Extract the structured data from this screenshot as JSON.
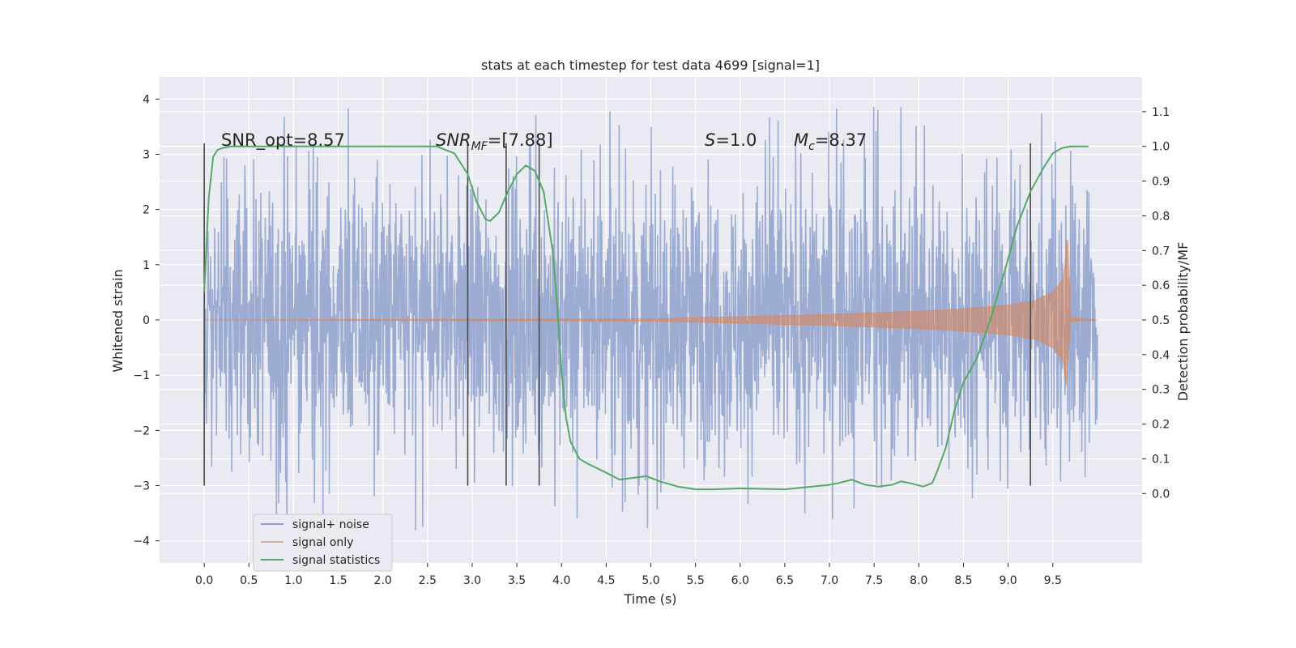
{
  "chart_data": {
    "type": "line",
    "title": "stats at each timestep for test data 4699 [signal=1]",
    "xlabel": "Time (s)",
    "ylabel": "Whitened strain",
    "ylabel_right": "Detection probability/MF",
    "xlim": [
      -0.5,
      10.5
    ],
    "ylim": [
      -4.4,
      4.4
    ],
    "ylim_right": [
      -0.2,
      1.2
    ],
    "x_ticks": [
      "0.0",
      "0.5",
      "1.0",
      "1.5",
      "2.0",
      "2.5",
      "3.0",
      "3.5",
      "4.0",
      "4.5",
      "5.0",
      "5.5",
      "6.0",
      "6.5",
      "7.0",
      "7.5",
      "8.0",
      "8.5",
      "9.0",
      "9.5"
    ],
    "y_ticks": [
      "−4",
      "−3",
      "−2",
      "−1",
      "0",
      "1",
      "2",
      "3",
      "4"
    ],
    "y_ticks_right": [
      "0.0",
      "0.1",
      "0.2",
      "0.3",
      "0.4",
      "0.5",
      "0.6",
      "0.7",
      "0.8",
      "0.9",
      "1.0",
      "1.1"
    ],
    "grid": true,
    "legend_position": "lower-left",
    "annotations": {
      "snr_opt": "SNR_opt=8.57",
      "snr_mf_base": "SNR",
      "snr_mf_sub": "MF",
      "snr_mf_value": "=[7.88]",
      "s_label": "S",
      "s_value": "=1.0",
      "mc_base": "M",
      "mc_sub": "c",
      "mc_value": "=8.37"
    },
    "vertical_markers": [
      {
        "x": 0.0,
        "y": [
          -3.0,
          3.2
        ]
      },
      {
        "x": 2.95,
        "y": [
          -3.0,
          3.2
        ]
      },
      {
        "x": 3.38,
        "y": [
          -3.0,
          3.2
        ]
      },
      {
        "x": 3.75,
        "y": [
          -3.0,
          3.2
        ]
      },
      {
        "x": 9.25,
        "y": [
          -3.0,
          3.2
        ]
      }
    ],
    "series": [
      {
        "name": "signal+ noise",
        "color": "#8da0cb",
        "axis": "left",
        "x_range": [
          0.0,
          10.0
        ],
        "amplitude_envelope": [
          [
            0.0,
            2.0
          ],
          [
            10.0,
            2.0
          ]
        ],
        "peak_range": [
          -3.9,
          4.0
        ]
      },
      {
        "name": "signal only",
        "color": "#dd8452",
        "axis": "left",
        "envelope": [
          {
            "x": 0.0,
            "a": 0.0
          },
          {
            "x": 5.0,
            "a": 0.02
          },
          {
            "x": 6.0,
            "a": 0.06
          },
          {
            "x": 7.0,
            "a": 0.1
          },
          {
            "x": 8.0,
            "a": 0.16
          },
          {
            "x": 8.5,
            "a": 0.2
          },
          {
            "x": 9.0,
            "a": 0.27
          },
          {
            "x": 9.3,
            "a": 0.35
          },
          {
            "x": 9.5,
            "a": 0.5
          },
          {
            "x": 9.62,
            "a": 0.75
          },
          {
            "x": 9.67,
            "a": 1.5
          },
          {
            "x": 9.7,
            "a": 0.05
          },
          {
            "x": 10.0,
            "a": 0.0
          }
        ]
      },
      {
        "name": "signal statistics",
        "color": "#55a868",
        "axis": "right",
        "points": [
          [
            0.0,
            0.58
          ],
          [
            0.05,
            0.85
          ],
          [
            0.1,
            0.97
          ],
          [
            0.15,
            0.99
          ],
          [
            0.2,
            0.995
          ],
          [
            0.3,
            1.0
          ],
          [
            1.0,
            1.0
          ],
          [
            2.0,
            1.0
          ],
          [
            2.6,
            1.0
          ],
          [
            2.8,
            0.98
          ],
          [
            2.95,
            0.92
          ],
          [
            3.05,
            0.84
          ],
          [
            3.15,
            0.79
          ],
          [
            3.2,
            0.785
          ],
          [
            3.3,
            0.81
          ],
          [
            3.4,
            0.87
          ],
          [
            3.5,
            0.92
          ],
          [
            3.6,
            0.945
          ],
          [
            3.7,
            0.93
          ],
          [
            3.8,
            0.87
          ],
          [
            3.9,
            0.7
          ],
          [
            3.95,
            0.55
          ],
          [
            4.0,
            0.35
          ],
          [
            4.05,
            0.22
          ],
          [
            4.1,
            0.15
          ],
          [
            4.2,
            0.1
          ],
          [
            4.3,
            0.085
          ],
          [
            4.5,
            0.06
          ],
          [
            4.65,
            0.04
          ],
          [
            4.8,
            0.045
          ],
          [
            4.95,
            0.05
          ],
          [
            5.1,
            0.035
          ],
          [
            5.3,
            0.02
          ],
          [
            5.5,
            0.012
          ],
          [
            5.7,
            0.012
          ],
          [
            6.0,
            0.015
          ],
          [
            6.5,
            0.012
          ],
          [
            6.8,
            0.02
          ],
          [
            7.0,
            0.025
          ],
          [
            7.1,
            0.03
          ],
          [
            7.25,
            0.04
          ],
          [
            7.4,
            0.025
          ],
          [
            7.55,
            0.02
          ],
          [
            7.7,
            0.025
          ],
          [
            7.8,
            0.035
          ],
          [
            7.9,
            0.03
          ],
          [
            8.05,
            0.02
          ],
          [
            8.15,
            0.03
          ],
          [
            8.2,
            0.06
          ],
          [
            8.3,
            0.13
          ],
          [
            8.4,
            0.24
          ],
          [
            8.5,
            0.32
          ],
          [
            8.65,
            0.39
          ],
          [
            8.8,
            0.5
          ],
          [
            8.95,
            0.63
          ],
          [
            9.1,
            0.77
          ],
          [
            9.25,
            0.87
          ],
          [
            9.4,
            0.94
          ],
          [
            9.5,
            0.98
          ],
          [
            9.6,
            0.995
          ],
          [
            9.7,
            1.0
          ],
          [
            9.9,
            1.0
          ]
        ]
      }
    ]
  }
}
